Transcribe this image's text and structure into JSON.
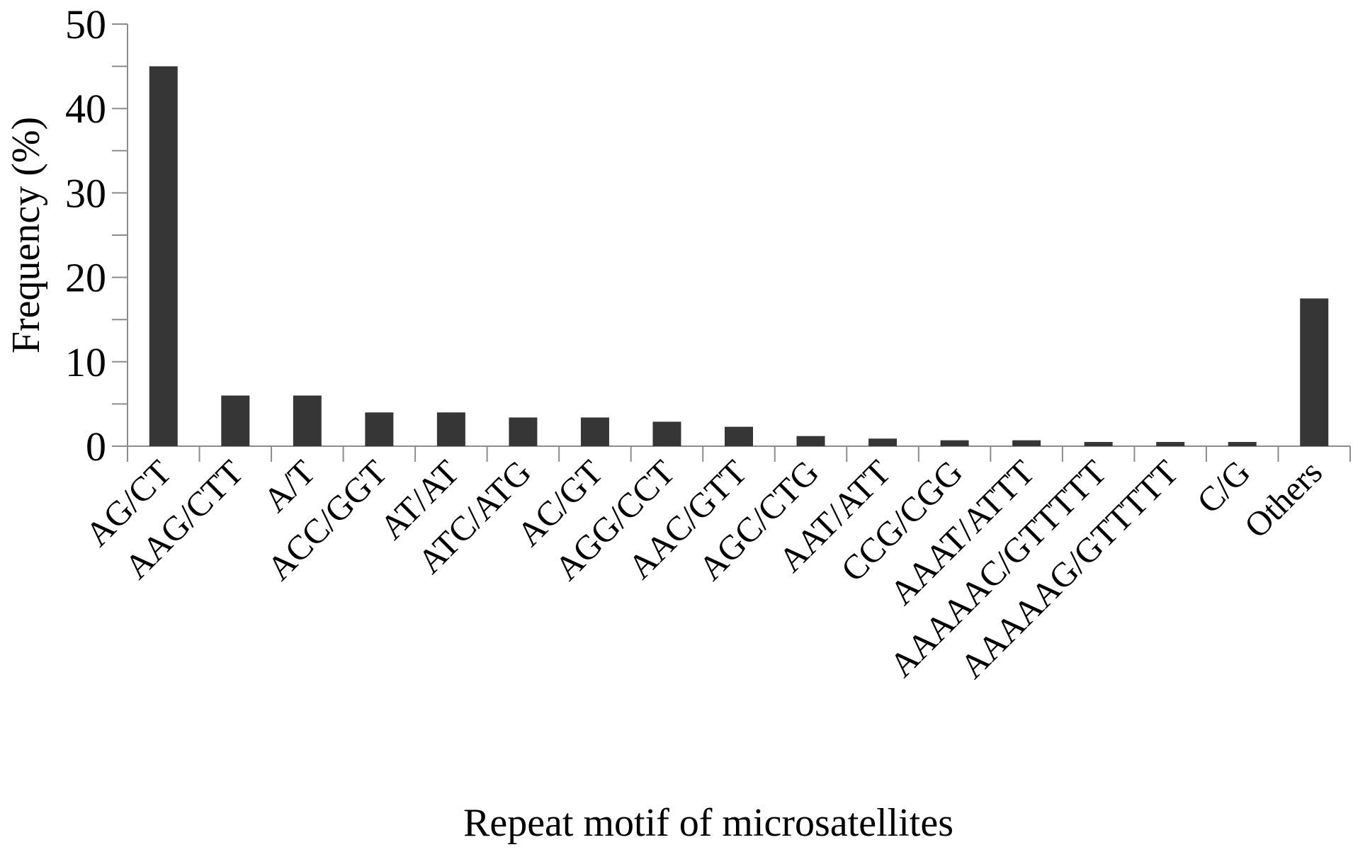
{
  "chart_data": {
    "type": "bar",
    "title": "",
    "xlabel": "Repeat motif of microsatellites",
    "ylabel": "Frequency (%)",
    "ylim": [
      0,
      50
    ],
    "yticks": [
      "0",
      "10",
      "20",
      "30",
      "40",
      "50"
    ],
    "grid": false,
    "categories": [
      "AG/CT",
      "AAG/CTT",
      "A/T",
      "ACC/GGT",
      "AT/AT",
      "ATC/ATG",
      "AC/GT",
      "AGG/CCT",
      "AAC/GTT",
      "AGC/CTG",
      "AAT/ATT",
      "CCG/CGG",
      "AAAT/ATTT",
      "AAAAAC/GTTTTT",
      "AAAAAG/GTTTTT",
      "C/G",
      "Others"
    ],
    "values": [
      45,
      6.0,
      6.0,
      4.0,
      4.0,
      3.4,
      3.4,
      2.9,
      2.3,
      1.2,
      0.9,
      0.7,
      0.7,
      0.5,
      0.5,
      0.5,
      17.5
    ],
    "bar_color": "#363636",
    "axis_color": "#8c8c8c"
  }
}
